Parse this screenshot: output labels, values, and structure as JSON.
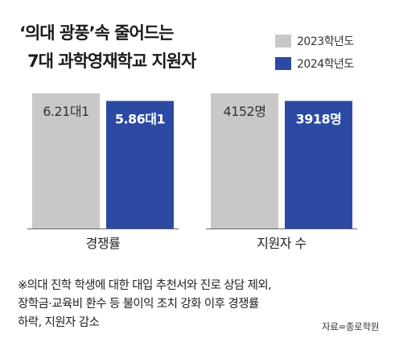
{
  "header": {
    "title_line1": "‘의대 광풍’속 줄어드는",
    "title_line2": "7대 과학영재학교 지원자"
  },
  "legend": {
    "items": [
      {
        "label": "2023학년도",
        "color": "#c8c8c8"
      },
      {
        "label": "2024학년도",
        "color": "#2c4aa3"
      }
    ]
  },
  "chart_data": [
    {
      "type": "bar",
      "categories": [
        "경쟁률"
      ],
      "series": [
        {
          "name": "2023학년도",
          "values": [
            6.21
          ],
          "labels": [
            "6.21대1"
          ],
          "color": "#c8c8c8",
          "label_color": "#333333"
        },
        {
          "name": "2024학년도",
          "values": [
            5.86
          ],
          "labels": [
            "5.86대1"
          ],
          "color": "#2c4aa3",
          "label_color": "#ffffff"
        }
      ],
      "xlabel": "경쟁률",
      "ylabel": ""
    },
    {
      "type": "bar",
      "categories": [
        "지원자 수"
      ],
      "series": [
        {
          "name": "2023학년도",
          "values": [
            4152
          ],
          "labels": [
            "4152명"
          ],
          "color": "#c8c8c8",
          "label_color": "#333333"
        },
        {
          "name": "2024학년도",
          "values": [
            3918
          ],
          "labels": [
            "3918명"
          ],
          "color": "#2c4aa3",
          "label_color": "#ffffff"
        }
      ],
      "xlabel": "지원자 수",
      "ylabel": ""
    }
  ],
  "note": {
    "line1": "※의대 진학 학생에 대한 대입 추천서와 진로 상담 제외,",
    "line2": "장학금·교육비 환수 등 불이익 조치 강화 이후 경쟁률",
    "line3": "하락, 지원자 감소"
  },
  "source": "자료=종로학원"
}
